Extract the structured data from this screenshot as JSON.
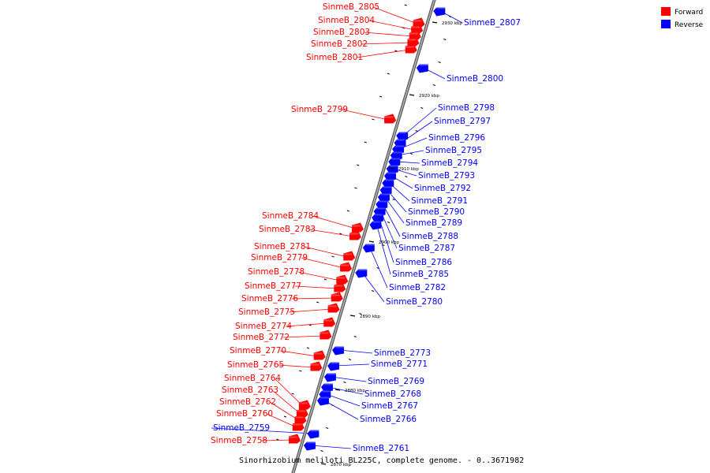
{
  "caption": "Sinorhizobium meliloti BL225C, complete genome. - 0..3671982",
  "colors": {
    "forward": "#ff0000",
    "reverse": "#0000ff",
    "axis": "#808080"
  },
  "legend": [
    {
      "label": "Forward",
      "strand": "forward"
    },
    {
      "label": "Reverse",
      "strand": "reverse"
    }
  ],
  "axis_ticks": [
    "2930 kbp",
    "2920 kbp",
    "2910 kbp",
    "2900 kbp",
    "2890 kbp",
    "2880 kbp",
    "2870 kbp"
  ],
  "genes": [
    {
      "name": "SinmeB_2805",
      "strand": "forward"
    },
    {
      "name": "SinmeB_2804",
      "strand": "forward"
    },
    {
      "name": "SinmeB_2803",
      "strand": "forward"
    },
    {
      "name": "SinmeB_2802",
      "strand": "forward"
    },
    {
      "name": "SinmeB_2801",
      "strand": "forward"
    },
    {
      "name": "SinmeB_2807",
      "strand": "reverse"
    },
    {
      "name": "SinmeB_2800",
      "strand": "reverse"
    },
    {
      "name": "SinmeB_2799",
      "strand": "forward"
    },
    {
      "name": "SinmeB_2798",
      "strand": "reverse"
    },
    {
      "name": "SinmeB_2797",
      "strand": "reverse"
    },
    {
      "name": "SinmeB_2796",
      "strand": "reverse"
    },
    {
      "name": "SinmeB_2795",
      "strand": "reverse"
    },
    {
      "name": "SinmeB_2794",
      "strand": "reverse"
    },
    {
      "name": "SinmeB_2793",
      "strand": "reverse"
    },
    {
      "name": "SinmeB_2792",
      "strand": "reverse"
    },
    {
      "name": "SinmeB_2791",
      "strand": "reverse"
    },
    {
      "name": "SinmeB_2790",
      "strand": "reverse"
    },
    {
      "name": "SinmeB_2789",
      "strand": "reverse"
    },
    {
      "name": "SinmeB_2788",
      "strand": "reverse"
    },
    {
      "name": "SinmeB_2787",
      "strand": "reverse"
    },
    {
      "name": "SinmeB_2786",
      "strand": "reverse"
    },
    {
      "name": "SinmeB_2785",
      "strand": "reverse"
    },
    {
      "name": "SinmeB_2782",
      "strand": "reverse"
    },
    {
      "name": "SinmeB_2780",
      "strand": "reverse"
    },
    {
      "name": "SinmeB_2784",
      "strand": "forward"
    },
    {
      "name": "SinmeB_2783",
      "strand": "forward"
    },
    {
      "name": "SinmeB_2781",
      "strand": "forward"
    },
    {
      "name": "SinmeB_2779",
      "strand": "forward"
    },
    {
      "name": "SinmeB_2778",
      "strand": "forward"
    },
    {
      "name": "SinmeB_2777",
      "strand": "forward"
    },
    {
      "name": "SinmeB_2776",
      "strand": "forward"
    },
    {
      "name": "SinmeB_2775",
      "strand": "forward"
    },
    {
      "name": "SinmeB_2774",
      "strand": "forward"
    },
    {
      "name": "SinmeB_2772",
      "strand": "forward"
    },
    {
      "name": "SinmeB_2770",
      "strand": "forward"
    },
    {
      "name": "SinmeB_2765",
      "strand": "forward"
    },
    {
      "name": "SinmeB_2764",
      "strand": "forward"
    },
    {
      "name": "SinmeB_2763",
      "strand": "forward"
    },
    {
      "name": "SinmeB_2762",
      "strand": "forward"
    },
    {
      "name": "SinmeB_2760",
      "strand": "forward"
    },
    {
      "name": "SinmeB_2759",
      "strand": "reverse"
    },
    {
      "name": "SinmeB_2758",
      "strand": "forward"
    },
    {
      "name": "SinmeB_2773",
      "strand": "reverse"
    },
    {
      "name": "SinmeB_2771",
      "strand": "reverse"
    },
    {
      "name": "SinmeB_2769",
      "strand": "reverse"
    },
    {
      "name": "SinmeB_2768",
      "strand": "reverse"
    },
    {
      "name": "SinmeB_2767",
      "strand": "reverse"
    },
    {
      "name": "SinmeB_2766",
      "strand": "reverse"
    },
    {
      "name": "SinmeB_2761",
      "strand": "reverse"
    }
  ]
}
